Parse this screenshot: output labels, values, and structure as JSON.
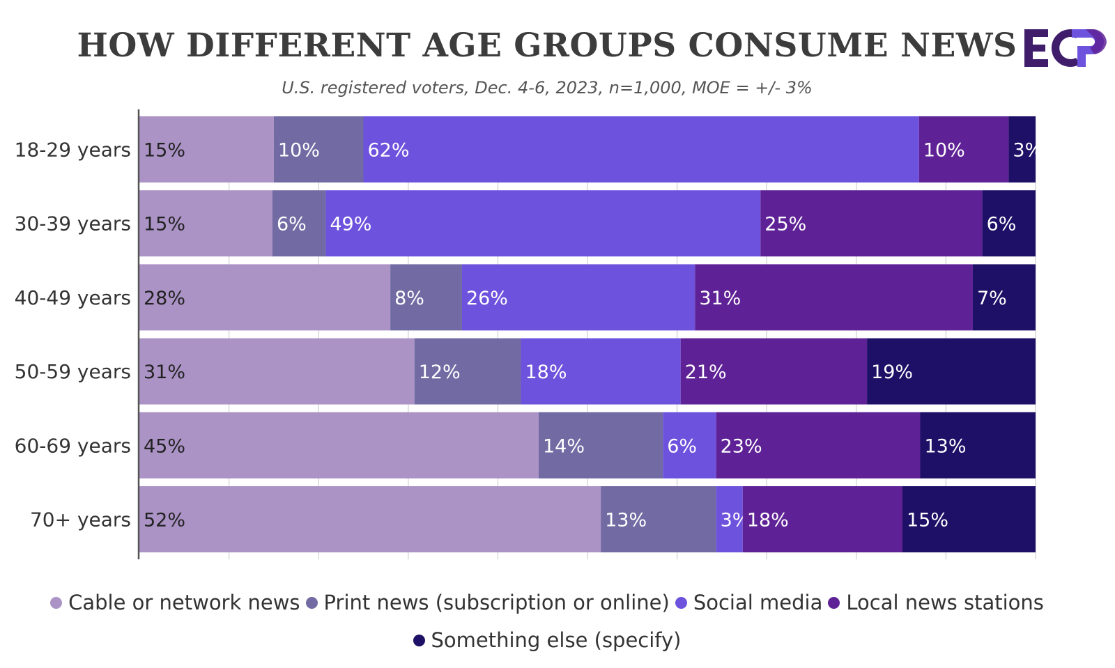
{
  "title": "HOW DIFFERENT AGE GROUPS CONSUME NEWS",
  "subtitle": "U.S. registered voters, Dec. 4-6, 2023, n=1,000, MOE = +/- 3%",
  "logo": {
    "text": "ECP",
    "color": "#3f1d6b"
  },
  "chart_data": {
    "type": "bar",
    "orientation": "horizontal",
    "stacked": true,
    "categories": [
      "18-29 years",
      "30-39 years",
      "40-49 years",
      "50-59 years",
      "60-69 years",
      "70+ years"
    ],
    "series": [
      {
        "name": "Cable or network news",
        "color": "#ab93c6",
        "label_color": "#222222",
        "values": [
          15,
          15,
          28,
          31,
          45,
          52
        ]
      },
      {
        "name": "Print news (subscription or online)",
        "color": "#726ba3",
        "label_color": "#ffffff",
        "values": [
          10,
          6,
          8,
          12,
          14,
          13
        ]
      },
      {
        "name": "Social media",
        "color": "#6c52dc",
        "label_color": "#ffffff",
        "values": [
          62,
          49,
          26,
          18,
          6,
          3
        ]
      },
      {
        "name": "Local news stations",
        "color": "#5f2296",
        "label_color": "#ffffff",
        "values": [
          10,
          25,
          31,
          21,
          23,
          18
        ]
      },
      {
        "name": "Something else (specify)",
        "color": "#1d1066",
        "label_color": "#ffffff",
        "values": [
          3,
          6,
          7,
          19,
          13,
          15
        ]
      }
    ],
    "value_suffix": "%",
    "xlim": [
      0,
      100
    ],
    "grid": true,
    "legend_position": "bottom"
  }
}
